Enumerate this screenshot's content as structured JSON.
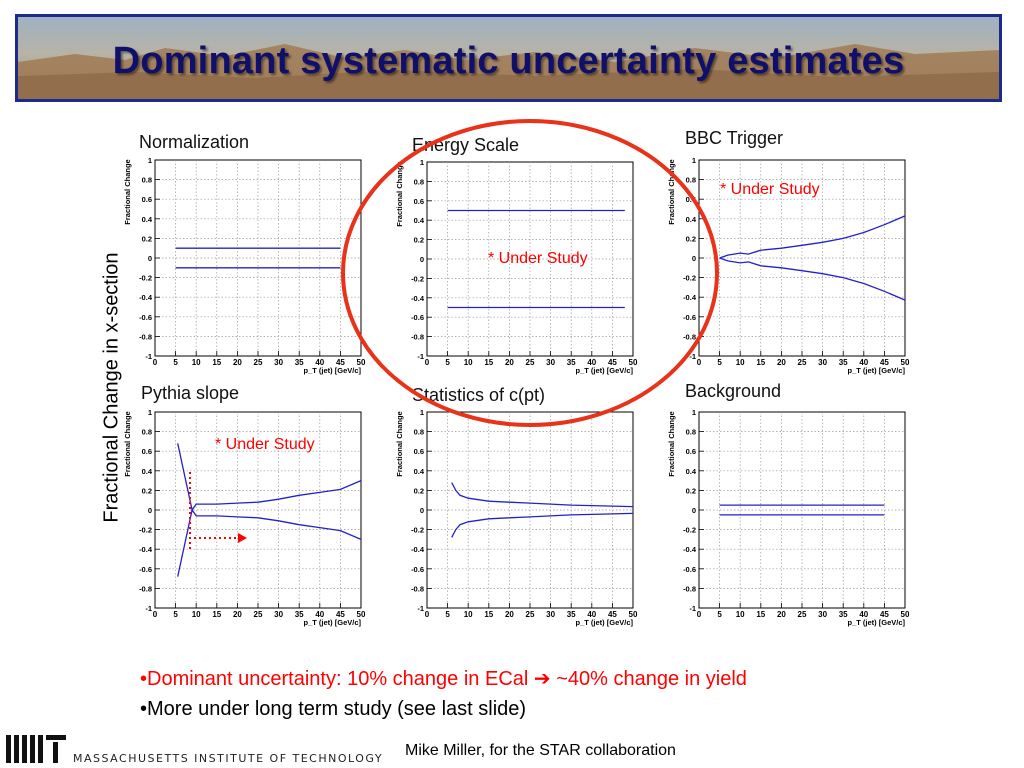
{
  "slide": {
    "title": "Dominant systematic uncertainty estimates",
    "y_axis_label": "Fractional Change in x-section",
    "bullets": [
      "•Dominant uncertainty: 10% change in ECal ➔ ~40% change in yield",
      "•More under long term study (see last slide)"
    ],
    "credit": "Mike Miller, for the STAR collaboration",
    "institution": "MASSACHUSETTS INSTITUTE OF TECHNOLOGY",
    "colors": {
      "title": "#10106a",
      "curve": "#2222cc",
      "highlight": "#ff0000",
      "circle": "#e8331a"
    }
  },
  "chart_data": [
    {
      "type": "line",
      "title": "Normalization",
      "xlabel": "p_T (jet) [GeV/c]",
      "ylabel": "Fractional Change",
      "xlim": [
        0,
        50
      ],
      "ylim": [
        -1,
        1
      ],
      "grid": true,
      "annotation": "",
      "series": [
        {
          "x": [
            5,
            45
          ],
          "y": [
            0.1,
            0.1
          ]
        },
        {
          "x": [
            5,
            45
          ],
          "y": [
            -0.1,
            -0.1
          ]
        }
      ]
    },
    {
      "type": "line",
      "title": "Energy Scale",
      "xlabel": "p_T (jet) [GeV/c]",
      "ylabel": "Fractional Change",
      "xlim": [
        0,
        50
      ],
      "ylim": [
        -1,
        1
      ],
      "grid": true,
      "annotation": "* Under Study",
      "series": [
        {
          "x": [
            5,
            48
          ],
          "y": [
            0.5,
            0.5
          ]
        },
        {
          "x": [
            5,
            48
          ],
          "y": [
            -0.5,
            -0.5
          ]
        }
      ]
    },
    {
      "type": "line",
      "title": "BBC Trigger",
      "xlabel": "p_T (jet) [GeV/c]",
      "ylabel": "Fractional Change",
      "xlim": [
        0,
        50
      ],
      "ylim": [
        -1,
        1
      ],
      "grid": true,
      "annotation": "* Under Study",
      "series": [
        {
          "x": [
            5,
            7,
            10,
            12,
            15,
            20,
            25,
            30,
            35,
            40,
            45,
            50
          ],
          "y": [
            0.0,
            0.03,
            0.05,
            0.04,
            0.08,
            0.1,
            0.13,
            0.16,
            0.2,
            0.26,
            0.34,
            0.43
          ]
        },
        {
          "x": [
            5,
            7,
            10,
            12,
            15,
            20,
            25,
            30,
            35,
            40,
            45,
            50
          ],
          "y": [
            0.0,
            -0.03,
            -0.05,
            -0.04,
            -0.08,
            -0.1,
            -0.13,
            -0.16,
            -0.2,
            -0.26,
            -0.34,
            -0.43
          ]
        }
      ]
    },
    {
      "type": "line",
      "title": "Pythia slope",
      "xlabel": "p_T (jet) [GeV/c]",
      "ylabel": "Fractional Change",
      "xlim": [
        0,
        50
      ],
      "ylim": [
        -1,
        1
      ],
      "grid": true,
      "annotation": "* Under Study",
      "series": [
        {
          "x": [
            5.5,
            9,
            10,
            15,
            20,
            25,
            30,
            35,
            40,
            45,
            50
          ],
          "y": [
            0.68,
            0.0,
            0.06,
            0.06,
            0.07,
            0.08,
            0.11,
            0.15,
            0.18,
            0.21,
            0.3
          ]
        },
        {
          "x": [
            5.5,
            9,
            10,
            15,
            20,
            25,
            30,
            35,
            40,
            45,
            50
          ],
          "y": [
            -0.68,
            0.0,
            -0.06,
            -0.06,
            -0.07,
            -0.08,
            -0.11,
            -0.15,
            -0.18,
            -0.21,
            -0.3
          ]
        }
      ]
    },
    {
      "type": "line",
      "title": "Statistics of c(pt)",
      "xlabel": "p_T (jet) [GeV/c]",
      "ylabel": "Fractional Change",
      "xlim": [
        0,
        50
      ],
      "ylim": [
        -1,
        1
      ],
      "grid": true,
      "annotation": "",
      "series": [
        {
          "x": [
            6,
            7,
            8,
            10,
            15,
            20,
            25,
            30,
            35,
            40,
            45,
            50
          ],
          "y": [
            0.28,
            0.2,
            0.15,
            0.12,
            0.09,
            0.08,
            0.07,
            0.06,
            0.05,
            0.045,
            0.04,
            0.035
          ]
        },
        {
          "x": [
            6,
            7,
            8,
            10,
            15,
            20,
            25,
            30,
            35,
            40,
            45,
            50
          ],
          "y": [
            -0.28,
            -0.2,
            -0.15,
            -0.12,
            -0.09,
            -0.08,
            -0.07,
            -0.06,
            -0.05,
            -0.045,
            -0.04,
            -0.035
          ]
        }
      ]
    },
    {
      "type": "line",
      "title": "Background",
      "xlabel": "p_T (jet) [GeV/c]",
      "ylabel": "Fractional Change",
      "xlim": [
        0,
        50
      ],
      "ylim": [
        -1,
        1
      ],
      "grid": true,
      "annotation": "",
      "series": [
        {
          "x": [
            5,
            45
          ],
          "y": [
            0.05,
            0.05
          ]
        },
        {
          "x": [
            5,
            45
          ],
          "y": [
            -0.05,
            -0.05
          ]
        }
      ]
    }
  ]
}
